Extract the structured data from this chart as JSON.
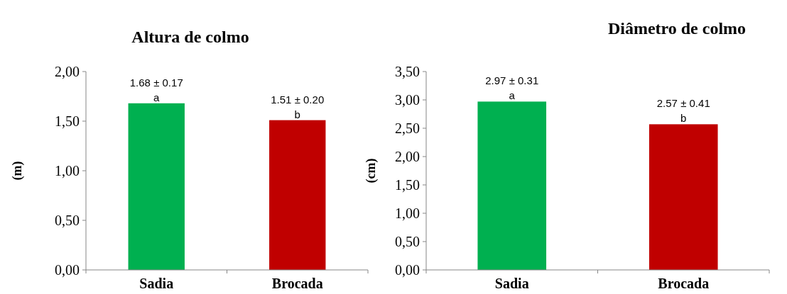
{
  "chart_data": [
    {
      "type": "bar",
      "title": "Altura de colmo",
      "ylabel": "(m)",
      "categories": [
        "Sadia",
        "Brocada"
      ],
      "values": [
        1.68,
        1.51
      ],
      "colors": [
        "#00b050",
        "#c00000"
      ],
      "value_labels": [
        "1.68 ± 0.17",
        "1.51 ± 0.20"
      ],
      "annotations": [
        {
          "text": "a",
          "x": "Sadia",
          "y": 1.68
        },
        {
          "text": "b",
          "x": "Brocada",
          "y": 1.51
        }
      ],
      "ylim": [
        0,
        2
      ],
      "yticks": [
        {
          "value": 0,
          "label": "0,00"
        },
        {
          "value": 0.5,
          "label": "0,50"
        },
        {
          "value": 1,
          "label": "1,00"
        },
        {
          "value": 1.5,
          "label": "1,50"
        },
        {
          "value": 2,
          "label": "2,00"
        }
      ],
      "grid": false
    },
    {
      "type": "bar",
      "title": "Diâmetro de colmo",
      "ylabel": "(cm)",
      "categories": [
        "Sadia",
        "Brocada"
      ],
      "values": [
        2.97,
        2.57
      ],
      "colors": [
        "#00b050",
        "#c00000"
      ],
      "value_labels": [
        "2.97 ± 0.31",
        "2.57 ± 0.41"
      ],
      "annotations": [
        {
          "text": "a",
          "x": "Sadia",
          "y": 2.97
        },
        {
          "text": "b",
          "x": "Brocada",
          "y": 2.57
        }
      ],
      "ylim": [
        0,
        3.5
      ],
      "yticks": [
        {
          "value": 0,
          "label": "0,00"
        },
        {
          "value": 0.5,
          "label": "0,50"
        },
        {
          "value": 1,
          "label": "1,00"
        },
        {
          "value": 1.5,
          "label": "1,50"
        },
        {
          "value": 2,
          "label": "2,00"
        },
        {
          "value": 2.5,
          "label": "2,50"
        },
        {
          "value": 3,
          "label": "3,00"
        },
        {
          "value": 3.5,
          "label": "3,50"
        }
      ],
      "grid": false
    }
  ]
}
